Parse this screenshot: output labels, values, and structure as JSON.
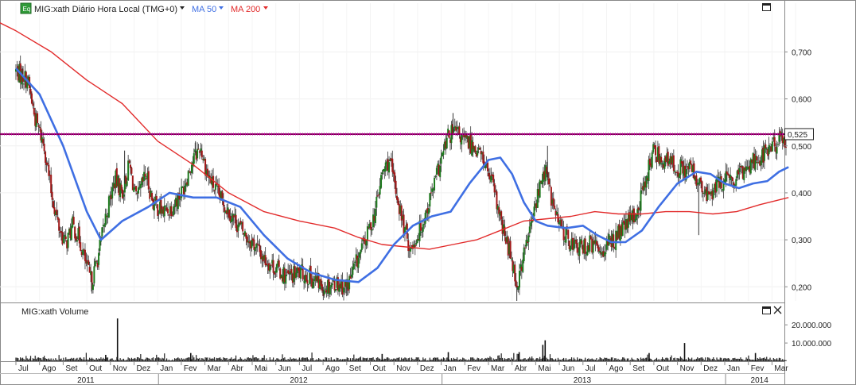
{
  "header": {
    "badge": "Eq",
    "symbol_label": "MIG:xath Diário Hora Local (TMG+0)",
    "ma50_label": "MA 50",
    "ma200_label": "MA 200"
  },
  "volume_panel": {
    "title": "MIG:xath Volume",
    "tick_labels": [
      "20.000.000",
      "10.000.000"
    ]
  },
  "colors": {
    "candle_up": "#1e7a1e",
    "candle_down": "#a01818",
    "ma50": "#3f6fe3",
    "ma200": "#e22b2b",
    "hline": "#7a0050",
    "hline_label_bg": "#ffffff"
  },
  "chart_data": {
    "type": "candlestick",
    "title": "MIG:xath Diário Hora Local (TMG+0)",
    "ylim": [
      0.17,
      0.77
    ],
    "y_ticks": [
      "0,700",
      "0,600",
      "0,500",
      "0,400",
      "0,300",
      "0,200"
    ],
    "y_tick_values": [
      0.7,
      0.6,
      0.5,
      0.4,
      0.3,
      0.2
    ],
    "horizontal_line": {
      "value": 0.525,
      "label": "0,525"
    },
    "x_month_labels": [
      "Jul",
      "Ago",
      "Set",
      "Out",
      "Nov",
      "Dez",
      "Jan",
      "Fev",
      "Mar",
      "Abr",
      "Mai",
      "Jun",
      "Jul",
      "Ago",
      "Set",
      "Out",
      "Nov",
      "Dez",
      "Jan",
      "Fev",
      "Mar",
      "Abr",
      "Mai",
      "Jun",
      "Jul",
      "Ago",
      "Set",
      "Out",
      "Nov",
      "Dez",
      "Jan",
      "Fev",
      "Mar"
    ],
    "x_year_labels": [
      "2011",
      "2012",
      "2013",
      "2014"
    ],
    "price_path": [
      {
        "m": 0.0,
        "v": 0.66
      },
      {
        "m": 0.5,
        "v": 0.64
      },
      {
        "m": 0.8,
        "v": 0.56
      },
      {
        "m": 1.2,
        "v": 0.5
      },
      {
        "m": 1.5,
        "v": 0.4
      },
      {
        "m": 1.8,
        "v": 0.33
      },
      {
        "m": 2.1,
        "v": 0.29
      },
      {
        "m": 2.4,
        "v": 0.33
      },
      {
        "m": 2.7,
        "v": 0.3
      },
      {
        "m": 3.0,
        "v": 0.24
      },
      {
        "m": 3.2,
        "v": 0.21
      },
      {
        "m": 3.5,
        "v": 0.27
      },
      {
        "m": 3.8,
        "v": 0.35
      },
      {
        "m": 4.2,
        "v": 0.43
      },
      {
        "m": 4.5,
        "v": 0.4
      },
      {
        "m": 4.8,
        "v": 0.46
      },
      {
        "m": 5.1,
        "v": 0.38
      },
      {
        "m": 5.5,
        "v": 0.44
      },
      {
        "m": 5.8,
        "v": 0.38
      },
      {
        "m": 6.2,
        "v": 0.36
      },
      {
        "m": 6.6,
        "v": 0.37
      },
      {
        "m": 7.0,
        "v": 0.4
      },
      {
        "m": 7.4,
        "v": 0.46
      },
      {
        "m": 7.8,
        "v": 0.5
      },
      {
        "m": 8.1,
        "v": 0.44
      },
      {
        "m": 8.5,
        "v": 0.4
      },
      {
        "m": 8.9,
        "v": 0.37
      },
      {
        "m": 9.3,
        "v": 0.34
      },
      {
        "m": 9.7,
        "v": 0.31
      },
      {
        "m": 10.1,
        "v": 0.29
      },
      {
        "m": 10.5,
        "v": 0.26
      },
      {
        "m": 11.0,
        "v": 0.24
      },
      {
        "m": 11.5,
        "v": 0.22
      },
      {
        "m": 12.0,
        "v": 0.23
      },
      {
        "m": 12.5,
        "v": 0.22
      },
      {
        "m": 13.0,
        "v": 0.2
      },
      {
        "m": 13.5,
        "v": 0.21
      },
      {
        "m": 14.0,
        "v": 0.2
      },
      {
        "m": 14.4,
        "v": 0.25
      },
      {
        "m": 14.8,
        "v": 0.3
      },
      {
        "m": 15.2,
        "v": 0.36
      },
      {
        "m": 15.5,
        "v": 0.44
      },
      {
        "m": 15.8,
        "v": 0.47
      },
      {
        "m": 16.1,
        "v": 0.4
      },
      {
        "m": 16.4,
        "v": 0.33
      },
      {
        "m": 16.7,
        "v": 0.28
      },
      {
        "m": 17.0,
        "v": 0.31
      },
      {
        "m": 17.3,
        "v": 0.35
      },
      {
        "m": 17.6,
        "v": 0.4
      },
      {
        "m": 18.0,
        "v": 0.47
      },
      {
        "m": 18.3,
        "v": 0.52
      },
      {
        "m": 18.6,
        "v": 0.53
      },
      {
        "m": 19.0,
        "v": 0.51
      },
      {
        "m": 19.4,
        "v": 0.5
      },
      {
        "m": 19.8,
        "v": 0.47
      },
      {
        "m": 20.2,
        "v": 0.41
      },
      {
        "m": 20.6,
        "v": 0.32
      },
      {
        "m": 21.0,
        "v": 0.26
      },
      {
        "m": 21.2,
        "v": 0.2
      },
      {
        "m": 21.5,
        "v": 0.27
      },
      {
        "m": 21.8,
        "v": 0.33
      },
      {
        "m": 22.1,
        "v": 0.4
      },
      {
        "m": 22.4,
        "v": 0.45
      },
      {
        "m": 22.7,
        "v": 0.38
      },
      {
        "m": 23.0,
        "v": 0.33
      },
      {
        "m": 23.4,
        "v": 0.3
      },
      {
        "m": 23.8,
        "v": 0.28
      },
      {
        "m": 24.3,
        "v": 0.29
      },
      {
        "m": 24.8,
        "v": 0.28
      },
      {
        "m": 25.3,
        "v": 0.3
      },
      {
        "m": 25.8,
        "v": 0.33
      },
      {
        "m": 26.3,
        "v": 0.36
      },
      {
        "m": 26.7,
        "v": 0.44
      },
      {
        "m": 27.0,
        "v": 0.49
      },
      {
        "m": 27.4,
        "v": 0.47
      },
      {
        "m": 27.8,
        "v": 0.46
      },
      {
        "m": 28.2,
        "v": 0.45
      },
      {
        "m": 28.6,
        "v": 0.45
      },
      {
        "m": 28.9,
        "v": 0.42
      },
      {
        "m": 29.2,
        "v": 0.39
      },
      {
        "m": 29.6,
        "v": 0.41
      },
      {
        "m": 30.0,
        "v": 0.43
      },
      {
        "m": 30.4,
        "v": 0.42
      },
      {
        "m": 30.8,
        "v": 0.45
      },
      {
        "m": 31.2,
        "v": 0.47
      },
      {
        "m": 31.6,
        "v": 0.48
      },
      {
        "m": 32.0,
        "v": 0.5
      },
      {
        "m": 32.3,
        "v": 0.51
      },
      {
        "m": 32.6,
        "v": 0.515
      }
    ],
    "spikes": [
      {
        "m": 0.3,
        "v": 0.67
      },
      {
        "m": 3.2,
        "v": 0.19
      },
      {
        "m": 4.6,
        "v": 0.49
      },
      {
        "m": 7.6,
        "v": 0.51
      },
      {
        "m": 18.5,
        "v": 0.57
      },
      {
        "m": 21.2,
        "v": 0.17
      },
      {
        "m": 22.5,
        "v": 0.5
      },
      {
        "m": 28.9,
        "v": 0.31
      },
      {
        "m": 14.0,
        "v": 0.18
      },
      {
        "m": 13.0,
        "v": 0.18
      }
    ],
    "ma50_path": [
      {
        "m": 0.0,
        "v": 0.665
      },
      {
        "m": 1.0,
        "v": 0.61
      },
      {
        "m": 2.0,
        "v": 0.5
      },
      {
        "m": 3.0,
        "v": 0.36
      },
      {
        "m": 3.6,
        "v": 0.3
      },
      {
        "m": 4.5,
        "v": 0.34
      },
      {
        "m": 5.6,
        "v": 0.37
      },
      {
        "m": 6.5,
        "v": 0.4
      },
      {
        "m": 7.5,
        "v": 0.39
      },
      {
        "m": 8.5,
        "v": 0.39
      },
      {
        "m": 9.5,
        "v": 0.37
      },
      {
        "m": 10.5,
        "v": 0.31
      },
      {
        "m": 11.5,
        "v": 0.26
      },
      {
        "m": 12.5,
        "v": 0.23
      },
      {
        "m": 13.5,
        "v": 0.215
      },
      {
        "m": 14.5,
        "v": 0.21
      },
      {
        "m": 15.3,
        "v": 0.24
      },
      {
        "m": 16.0,
        "v": 0.29
      },
      {
        "m": 16.8,
        "v": 0.33
      },
      {
        "m": 17.6,
        "v": 0.35
      },
      {
        "m": 18.4,
        "v": 0.36
      },
      {
        "m": 19.2,
        "v": 0.42
      },
      {
        "m": 20.0,
        "v": 0.47
      },
      {
        "m": 20.5,
        "v": 0.475
      },
      {
        "m": 21.0,
        "v": 0.44
      },
      {
        "m": 21.5,
        "v": 0.38
      },
      {
        "m": 22.0,
        "v": 0.34
      },
      {
        "m": 22.5,
        "v": 0.33
      },
      {
        "m": 23.3,
        "v": 0.325
      },
      {
        "m": 24.0,
        "v": 0.33
      },
      {
        "m": 24.6,
        "v": 0.31
      },
      {
        "m": 25.2,
        "v": 0.295
      },
      {
        "m": 25.8,
        "v": 0.295
      },
      {
        "m": 26.5,
        "v": 0.32
      },
      {
        "m": 27.2,
        "v": 0.37
      },
      {
        "m": 28.0,
        "v": 0.42
      },
      {
        "m": 28.8,
        "v": 0.445
      },
      {
        "m": 29.4,
        "v": 0.44
      },
      {
        "m": 30.0,
        "v": 0.42
      },
      {
        "m": 30.6,
        "v": 0.41
      },
      {
        "m": 31.2,
        "v": 0.42
      },
      {
        "m": 31.8,
        "v": 0.425
      },
      {
        "m": 32.3,
        "v": 0.445
      },
      {
        "m": 32.7,
        "v": 0.455
      }
    ],
    "ma200_path": [
      {
        "m": -1.0,
        "v": 0.77
      },
      {
        "m": 0.0,
        "v": 0.745
      },
      {
        "m": 1.5,
        "v": 0.7
      },
      {
        "m": 3.0,
        "v": 0.64
      },
      {
        "m": 4.5,
        "v": 0.59
      },
      {
        "m": 6.0,
        "v": 0.51
      },
      {
        "m": 7.5,
        "v": 0.46
      },
      {
        "m": 9.0,
        "v": 0.4
      },
      {
        "m": 10.5,
        "v": 0.36
      },
      {
        "m": 12.0,
        "v": 0.34
      },
      {
        "m": 13.5,
        "v": 0.325
      },
      {
        "m": 14.5,
        "v": 0.305
      },
      {
        "m": 15.5,
        "v": 0.29
      },
      {
        "m": 16.5,
        "v": 0.285
      },
      {
        "m": 17.5,
        "v": 0.28
      },
      {
        "m": 18.5,
        "v": 0.29
      },
      {
        "m": 19.5,
        "v": 0.3
      },
      {
        "m": 20.5,
        "v": 0.32
      },
      {
        "m": 21.5,
        "v": 0.34
      },
      {
        "m": 22.5,
        "v": 0.345
      },
      {
        "m": 23.5,
        "v": 0.35
      },
      {
        "m": 24.5,
        "v": 0.36
      },
      {
        "m": 25.5,
        "v": 0.355
      },
      {
        "m": 26.5,
        "v": 0.355
      },
      {
        "m": 27.5,
        "v": 0.36
      },
      {
        "m": 28.5,
        "v": 0.36
      },
      {
        "m": 29.5,
        "v": 0.355
      },
      {
        "m": 30.5,
        "v": 0.36
      },
      {
        "m": 31.5,
        "v": 0.375
      },
      {
        "m": 32.7,
        "v": 0.39
      }
    ],
    "volume_ylim": [
      0,
      24000000
    ],
    "volume_ticks": [
      20000000,
      10000000
    ],
    "volume_spikes": [
      {
        "m": 4.3,
        "v": 23500000
      },
      {
        "m": 22.4,
        "v": 11500000
      },
      {
        "m": 22.3,
        "v": 9000000
      },
      {
        "m": 28.3,
        "v": 10000000
      },
      {
        "m": 3.8,
        "v": 3500000
      },
      {
        "m": 7.4,
        "v": 4500000
      },
      {
        "m": 15.5,
        "v": 4000000
      },
      {
        "m": 18.3,
        "v": 5000000
      },
      {
        "m": 21.3,
        "v": 5000000
      },
      {
        "m": 31.3,
        "v": 4500000
      },
      {
        "m": 26.8,
        "v": 4500000
      }
    ]
  }
}
